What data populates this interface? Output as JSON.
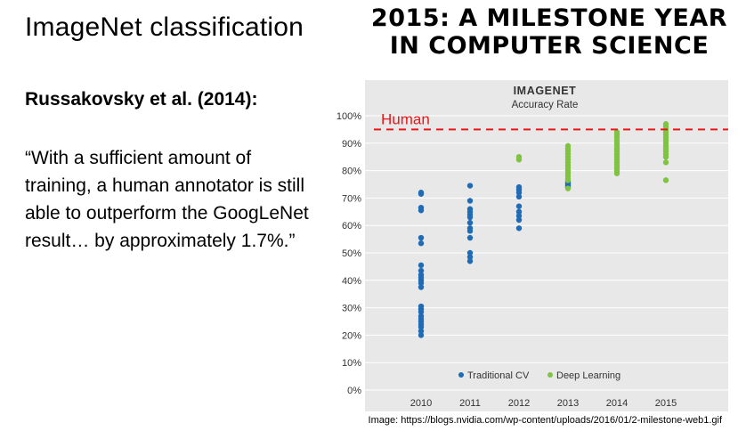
{
  "slide": {
    "title": "ImageNet classification",
    "citation": "Russakovsky et al. (2014):",
    "quote": "“With a sufficient amount of training, a human annotator is still able to outperform the GoogLeNet result… by approximately 1.7%.”",
    "headline_line1": "2015: A MILESTONE YEAR",
    "headline_line2": "IN COMPUTER SCIENCE",
    "image_credit": "Image: https://blogs.nvidia.com/wp-content/uploads/2016/01/2-milestone-web1.gif"
  },
  "chart_data": {
    "type": "scatter",
    "title": "IMAGENET",
    "subtitle": "Accuracy Rate",
    "xlabel": "",
    "ylabel": "",
    "categories": [
      "2010",
      "2011",
      "2012",
      "2013",
      "2014",
      "2015"
    ],
    "y_ticks": [
      "0%",
      "10%",
      "20%",
      "30%",
      "40%",
      "50%",
      "60%",
      "70%",
      "80%",
      "90%",
      "100%"
    ],
    "ylim": [
      0,
      100
    ],
    "grid": true,
    "legend_position": "bottom",
    "reference_line": {
      "label": "Human",
      "value": 95,
      "color": "#e8171b"
    },
    "series": [
      {
        "name": "Traditional CV",
        "color": "#1f6bb5",
        "points": [
          {
            "x": "2010",
            "y": 72
          },
          {
            "x": "2010",
            "y": 71.5
          },
          {
            "x": "2010",
            "y": 66.5
          },
          {
            "x": "2010",
            "y": 65.5
          },
          {
            "x": "2010",
            "y": 55.5
          },
          {
            "x": "2010",
            "y": 53.5
          },
          {
            "x": "2010",
            "y": 45.5
          },
          {
            "x": "2010",
            "y": 43.5
          },
          {
            "x": "2010",
            "y": 42
          },
          {
            "x": "2010",
            "y": 41
          },
          {
            "x": "2010",
            "y": 40
          },
          {
            "x": "2010",
            "y": 39
          },
          {
            "x": "2010",
            "y": 37.5
          },
          {
            "x": "2010",
            "y": 30.5
          },
          {
            "x": "2010",
            "y": 29.5
          },
          {
            "x": "2010",
            "y": 28.5
          },
          {
            "x": "2010",
            "y": 27
          },
          {
            "x": "2010",
            "y": 26
          },
          {
            "x": "2010",
            "y": 25
          },
          {
            "x": "2010",
            "y": 24
          },
          {
            "x": "2010",
            "y": 23
          },
          {
            "x": "2010",
            "y": 21.5
          },
          {
            "x": "2010",
            "y": 20
          },
          {
            "x": "2011",
            "y": 74.5
          },
          {
            "x": "2011",
            "y": 69
          },
          {
            "x": "2011",
            "y": 66
          },
          {
            "x": "2011",
            "y": 65
          },
          {
            "x": "2011",
            "y": 64
          },
          {
            "x": "2011",
            "y": 63
          },
          {
            "x": "2011",
            "y": 61
          },
          {
            "x": "2011",
            "y": 59
          },
          {
            "x": "2011",
            "y": 58
          },
          {
            "x": "2011",
            "y": 55.5
          },
          {
            "x": "2011",
            "y": 50
          },
          {
            "x": "2011",
            "y": 48.5
          },
          {
            "x": "2011",
            "y": 47
          },
          {
            "x": "2012",
            "y": 74
          },
          {
            "x": "2012",
            "y": 73
          },
          {
            "x": "2012",
            "y": 72
          },
          {
            "x": "2012",
            "y": 70.5
          },
          {
            "x": "2012",
            "y": 67
          },
          {
            "x": "2012",
            "y": 65
          },
          {
            "x": "2012",
            "y": 63.5
          },
          {
            "x": "2012",
            "y": 62
          },
          {
            "x": "2012",
            "y": 59
          },
          {
            "x": "2013",
            "y": 76
          },
          {
            "x": "2013",
            "y": 75.5
          },
          {
            "x": "2013",
            "y": 75
          },
          {
            "x": "2013",
            "y": 74.5
          },
          {
            "x": "2013",
            "y": 74
          }
        ]
      },
      {
        "name": "Deep Learning",
        "color": "#80c342",
        "points": [
          {
            "x": "2012",
            "y": 85
          },
          {
            "x": "2012",
            "y": 84
          },
          {
            "x": "2013",
            "y": 89
          },
          {
            "x": "2013",
            "y": 88
          },
          {
            "x": "2013",
            "y": 87
          },
          {
            "x": "2013",
            "y": 86
          },
          {
            "x": "2013",
            "y": 85
          },
          {
            "x": "2013",
            "y": 84
          },
          {
            "x": "2013",
            "y": 83
          },
          {
            "x": "2013",
            "y": 82
          },
          {
            "x": "2013",
            "y": 81
          },
          {
            "x": "2013",
            "y": 80
          },
          {
            "x": "2013",
            "y": 79
          },
          {
            "x": "2013",
            "y": 78
          },
          {
            "x": "2013",
            "y": 77
          },
          {
            "x": "2013",
            "y": 76.5
          },
          {
            "x": "2013",
            "y": 73.5
          },
          {
            "x": "2014",
            "y": 94
          },
          {
            "x": "2014",
            "y": 93
          },
          {
            "x": "2014",
            "y": 92
          },
          {
            "x": "2014",
            "y": 91
          },
          {
            "x": "2014",
            "y": 90
          },
          {
            "x": "2014",
            "y": 89
          },
          {
            "x": "2014",
            "y": 88
          },
          {
            "x": "2014",
            "y": 87
          },
          {
            "x": "2014",
            "y": 86
          },
          {
            "x": "2014",
            "y": 85
          },
          {
            "x": "2014",
            "y": 84
          },
          {
            "x": "2014",
            "y": 83
          },
          {
            "x": "2014",
            "y": 82
          },
          {
            "x": "2014",
            "y": 81
          },
          {
            "x": "2014",
            "y": 80
          },
          {
            "x": "2014",
            "y": 79
          },
          {
            "x": "2015",
            "y": 97
          },
          {
            "x": "2015",
            "y": 96
          },
          {
            "x": "2015",
            "y": 95
          },
          {
            "x": "2015",
            "y": 94
          },
          {
            "x": "2015",
            "y": 93
          },
          {
            "x": "2015",
            "y": 92
          },
          {
            "x": "2015",
            "y": 91
          },
          {
            "x": "2015",
            "y": 90
          },
          {
            "x": "2015",
            "y": 89
          },
          {
            "x": "2015",
            "y": 88
          },
          {
            "x": "2015",
            "y": 87
          },
          {
            "x": "2015",
            "y": 86
          },
          {
            "x": "2015",
            "y": 85
          },
          {
            "x": "2015",
            "y": 83
          },
          {
            "x": "2015",
            "y": 76.5
          }
        ]
      }
    ]
  }
}
